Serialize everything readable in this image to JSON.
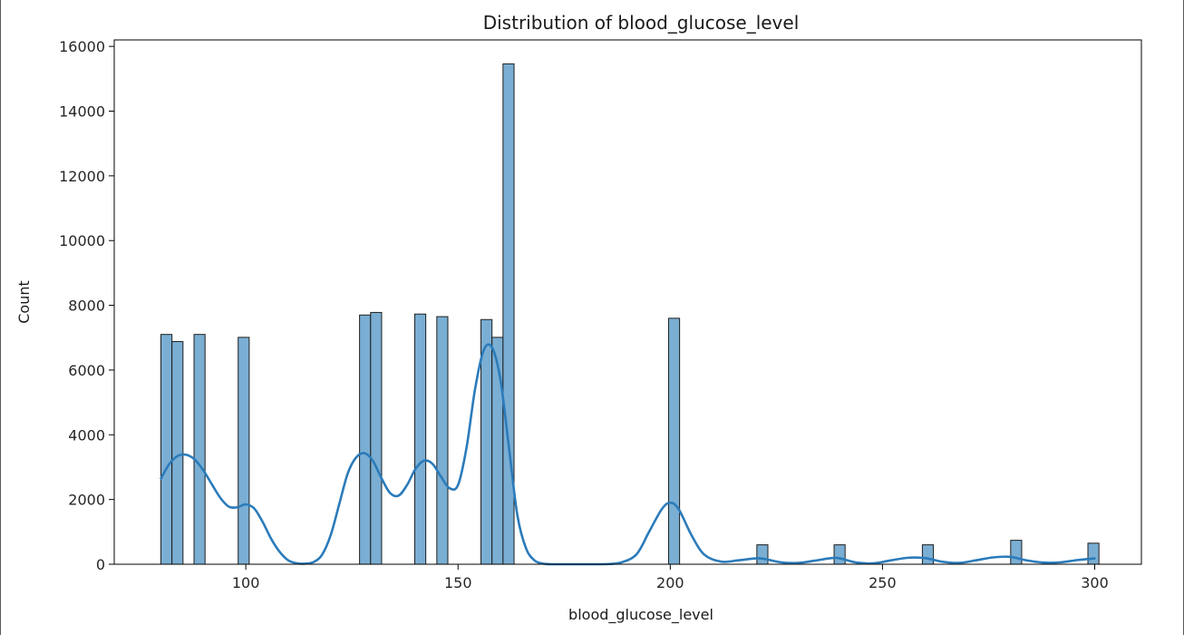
{
  "chart_data": {
    "type": "bar",
    "title": "Distribution of blood_glucose_level",
    "xlabel": "blood_glucose_level",
    "ylabel": "Count",
    "xlim": [
      69,
      311
    ],
    "ylim": [
      0,
      16200
    ],
    "xticks": [
      100,
      150,
      200,
      250,
      300
    ],
    "yticks": [
      0,
      2000,
      4000,
      6000,
      8000,
      10000,
      12000,
      14000,
      16000
    ],
    "grid": false,
    "bar_fill": "#7aaed3",
    "bar_edge": "#1f1f1f",
    "kde_color": "#2b7bba",
    "bins": [
      {
        "x0": 80.0,
        "x1": 82.6,
        "count": 7100
      },
      {
        "x0": 82.6,
        "x1": 85.2,
        "count": 6880
      },
      {
        "x0": 87.8,
        "x1": 90.4,
        "count": 7100
      },
      {
        "x0": 98.2,
        "x1": 100.8,
        "count": 7010
      },
      {
        "x0": 126.8,
        "x1": 129.4,
        "count": 7700
      },
      {
        "x0": 129.4,
        "x1": 132.0,
        "count": 7780
      },
      {
        "x0": 139.8,
        "x1": 142.4,
        "count": 7730
      },
      {
        "x0": 145.0,
        "x1": 147.6,
        "count": 7650
      },
      {
        "x0": 155.4,
        "x1": 158.0,
        "count": 7560
      },
      {
        "x0": 158.0,
        "x1": 160.6,
        "count": 7010
      },
      {
        "x0": 160.6,
        "x1": 163.2,
        "count": 15460
      },
      {
        "x0": 199.6,
        "x1": 202.2,
        "count": 7600
      },
      {
        "x0": 220.4,
        "x1": 223.0,
        "count": 600
      },
      {
        "x0": 238.6,
        "x1": 241.2,
        "count": 600
      },
      {
        "x0": 259.4,
        "x1": 262.0,
        "count": 600
      },
      {
        "x0": 280.2,
        "x1": 282.8,
        "count": 740
      },
      {
        "x0": 298.4,
        "x1": 301.0,
        "count": 650
      }
    ],
    "kde": {
      "x": [
        80,
        82,
        84,
        86,
        88,
        90,
        92,
        94,
        96,
        98,
        100,
        102,
        104,
        106,
        108,
        110,
        112,
        114,
        116,
        118,
        120,
        122,
        124,
        126,
        128,
        130,
        132,
        134,
        136,
        138,
        140,
        142,
        144,
        146,
        148,
        150,
        152,
        154,
        156,
        158,
        160,
        162,
        164,
        166,
        168,
        170,
        172,
        176,
        180,
        184,
        188,
        192,
        195,
        198,
        200,
        202,
        205,
        208,
        212,
        216,
        220,
        222,
        226,
        230,
        234,
        238,
        240,
        244,
        248,
        252,
        256,
        260,
        264,
        268,
        272,
        276,
        280,
        284,
        288,
        292,
        296,
        300
      ],
      "y": [
        2650,
        3100,
        3350,
        3380,
        3230,
        2900,
        2470,
        2050,
        1780,
        1760,
        1850,
        1720,
        1300,
        780,
        380,
        120,
        30,
        20,
        70,
        300,
        900,
        1850,
        2800,
        3300,
        3430,
        3180,
        2650,
        2200,
        2120,
        2450,
        2950,
        3200,
        3100,
        2700,
        2350,
        2450,
        3600,
        5400,
        6600,
        6700,
        5700,
        3600,
        1500,
        500,
        120,
        20,
        0,
        0,
        0,
        0,
        40,
        300,
        1000,
        1700,
        1900,
        1700,
        900,
        300,
        80,
        120,
        180,
        170,
        60,
        40,
        110,
        190,
        180,
        50,
        30,
        120,
        200,
        190,
        80,
        40,
        120,
        210,
        230,
        120,
        50,
        60,
        130,
        180
      ]
    }
  }
}
